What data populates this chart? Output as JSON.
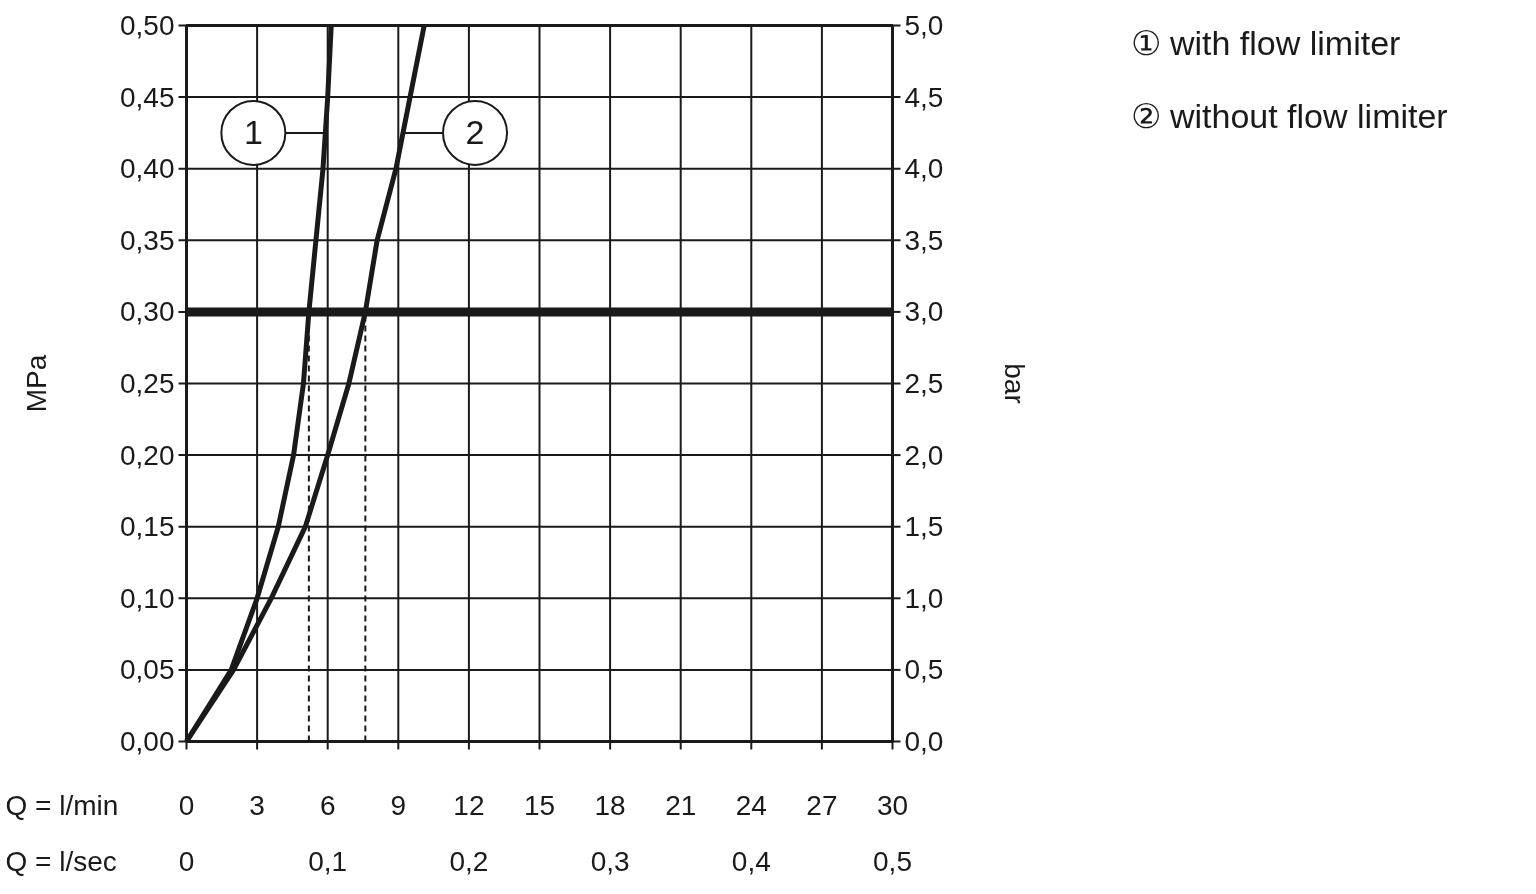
{
  "chart_data": {
    "type": "line",
    "xlabel": "Q = l/min",
    "ylabel": "MPa",
    "y2label": "bar",
    "x2label": "Q = l/sec",
    "xlim": [
      0,
      30
    ],
    "xticks": [
      0,
      3,
      6,
      9,
      12,
      15,
      18,
      21,
      24,
      27,
      30
    ],
    "x2lim": [
      0,
      0.5
    ],
    "x2ticks": [
      {
        "value": 0,
        "label": "0"
      },
      {
        "value": 0.1,
        "label": "0,1"
      },
      {
        "value": 0.2,
        "label": "0,2"
      },
      {
        "value": 0.3,
        "label": "0,3"
      },
      {
        "value": 0.4,
        "label": "0,4"
      },
      {
        "value": 0.5,
        "label": "0,5"
      }
    ],
    "ylim": [
      0,
      0.5
    ],
    "yticks": [
      {
        "value": 0,
        "label": "0,00"
      },
      {
        "value": 0.05,
        "label": "0,05"
      },
      {
        "value": 0.1,
        "label": "0,10"
      },
      {
        "value": 0.15,
        "label": "0,15"
      },
      {
        "value": 0.2,
        "label": "0,20"
      },
      {
        "value": 0.25,
        "label": "0,25"
      },
      {
        "value": 0.3,
        "label": "0,30"
      },
      {
        "value": 0.35,
        "label": "0,35"
      },
      {
        "value": 0.4,
        "label": "0,40"
      },
      {
        "value": 0.45,
        "label": "0,45"
      },
      {
        "value": 0.5,
        "label": "0,50"
      }
    ],
    "y2lim": [
      0,
      5
    ],
    "y2ticks": [
      {
        "value": 0,
        "label": "0,0"
      },
      {
        "value": 0.5,
        "label": "0,5"
      },
      {
        "value": 1,
        "label": "1,0"
      },
      {
        "value": 1.5,
        "label": "1,5"
      },
      {
        "value": 2,
        "label": "2,0"
      },
      {
        "value": 2.5,
        "label": "2,5"
      },
      {
        "value": 3,
        "label": "3,0"
      },
      {
        "value": 3.5,
        "label": "3,5"
      },
      {
        "value": 4,
        "label": "4,0"
      },
      {
        "value": 4.5,
        "label": "4,5"
      },
      {
        "value": 5,
        "label": "5,0"
      }
    ],
    "grid": true,
    "marker": "none",
    "line_style": "solid",
    "series": [
      {
        "name": "① with flow limiter",
        "color": "#1a1a1a",
        "x": [
          0,
          1.9,
          3.0,
          3.9,
          4.55,
          4.97,
          5.2,
          5.5,
          5.8,
          6.0,
          6.15
        ],
        "values": [
          0,
          0.05,
          0.1,
          0.15,
          0.2,
          0.25,
          0.3,
          0.35,
          0.4,
          0.45,
          0.5
        ]
      },
      {
        "name": "② without flow limiter",
        "color": "#1a1a1a",
        "x": [
          0,
          2.0,
          3.6,
          5.05,
          6.0,
          6.9,
          7.6,
          8.1,
          8.9,
          9.5,
          10.1
        ],
        "values": [
          0,
          0.05,
          0.1,
          0.15,
          0.2,
          0.25,
          0.3,
          0.35,
          0.4,
          0.45,
          0.5
        ]
      }
    ],
    "annotations": [
      {
        "text": "1",
        "x": 5.9,
        "y": 0.425
      },
      {
        "text": "2",
        "x": 9.2,
        "y": 0.425
      }
    ],
    "ref_lines": [
      {
        "axis": "y",
        "value": 0.3,
        "color": "#1a1a1a",
        "line_style": "solid"
      },
      {
        "axis": "x",
        "value": 5.2,
        "color": "#1a1a1a",
        "line_style": "dashed"
      },
      {
        "axis": "x",
        "value": 7.6,
        "color": "#1a1a1a",
        "line_style": "dashed"
      }
    ]
  }
}
